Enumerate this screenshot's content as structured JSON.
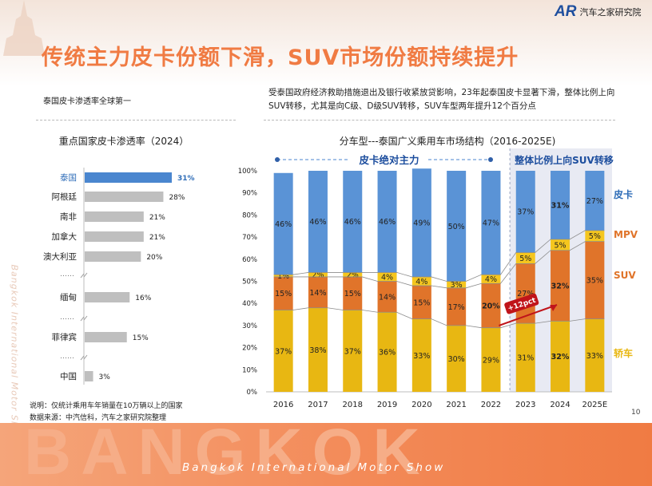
{
  "header": {
    "title": "传统主力皮卡份额下滑，SUV市场份额持续提升",
    "logo_mark": "AR",
    "logo_text": "汽车之家研究院"
  },
  "left_panel": {
    "subtitle": "泰国皮卡渗透率全球第一",
    "footnote": "说明：仅统计乘用车年销量在10万辆以上的国家",
    "source": "数据来源：中汽信科，汽车之家研究院整理"
  },
  "right_panel": {
    "subtitle": "受泰国政府经济救助措施退出及银行收紧放贷影响，23年起泰国皮卡显著下滑，整体比例上向SUV转移，尤其是向C级、D级SUV转移，SUV车型两年提升12个百分点",
    "annotation_left": "皮卡绝对主力",
    "annotation_right": "整体比例上向SUV转移",
    "arrow_label": "+12pct"
  },
  "decor": {
    "vertical_text": "Bangkok International Motor Show",
    "footer_big": "BANGKOK",
    "footer_text": "Bangkok International Motor Show",
    "page_number": "10"
  },
  "chart_data": [
    {
      "type": "bar",
      "orientation": "horizontal",
      "title": "重点国家皮卡渗透率（2024）",
      "categories": [
        "泰国",
        "阿根廷",
        "南非",
        "加拿大",
        "澳大利亚",
        "……",
        "缅甸",
        "……",
        "菲律宾",
        "……",
        "中国"
      ],
      "values": [
        31,
        28,
        21,
        21,
        20,
        null,
        16,
        null,
        15,
        null,
        3
      ],
      "value_labels": [
        "31%",
        "28%",
        "21%",
        "21%",
        "20%",
        "",
        "16%",
        "",
        "15%",
        "",
        "3%"
      ],
      "highlight": "泰国",
      "colors": {
        "highlight": "#4a86cf",
        "default": "#bfbfbf",
        "highlight_text": "#2f6db8"
      }
    },
    {
      "type": "bar",
      "stacked": true,
      "percent": true,
      "title": "分车型---泰国广义乘用车市场结构（2016-2025E)",
      "categories": [
        "2016",
        "2017",
        "2018",
        "2019",
        "2020",
        "2021",
        "2022",
        "2023",
        "2024",
        "2025E"
      ],
      "y_ticks": [
        "0%",
        "10%",
        "20%",
        "30%",
        "40%",
        "50%",
        "60%",
        "70%",
        "80%",
        "90%",
        "100%"
      ],
      "ylim": [
        0,
        100
      ],
      "series": [
        {
          "name": "轿车",
          "color": "#e8b712",
          "values": [
            37,
            38,
            37,
            36,
            33,
            30,
            29,
            31,
            32,
            33
          ]
        },
        {
          "name": "SUV",
          "color": "#e0742a",
          "values": [
            15,
            14,
            15,
            14,
            15,
            17,
            20,
            27,
            32,
            35
          ]
        },
        {
          "name": "MPV",
          "color": "#f5c61e",
          "values": [
            1,
            2,
            2,
            4,
            4,
            3,
            4,
            5,
            5,
            5
          ]
        },
        {
          "name": "皮卡",
          "color": "#5a93d6",
          "values": [
            46,
            46,
            46,
            46,
            49,
            50,
            47,
            37,
            31,
            27
          ]
        }
      ],
      "labels": {
        "轿车": [
          "37%",
          "38%",
          "37%",
          "36%",
          "33%",
          "30%",
          "29%",
          "31%",
          "32%",
          "33%"
        ],
        "SUV": [
          "15%",
          "14%",
          "15%",
          "14%",
          "15%",
          "17%",
          "20%",
          "27%",
          "32%",
          "35%"
        ],
        "MPV": [
          "1%",
          "2%",
          "2%",
          "4%",
          "4%",
          "3%",
          "4%",
          "5%",
          "5%",
          "5%"
        ],
        "皮卡": [
          "46%",
          "46%",
          "46%",
          "46%",
          "49%",
          "50%",
          "47%",
          "37%",
          "31%",
          "27%"
        ]
      },
      "shaded_categories": [
        "2023",
        "2024",
        "2025E"
      ],
      "legend_position": "right"
    }
  ]
}
